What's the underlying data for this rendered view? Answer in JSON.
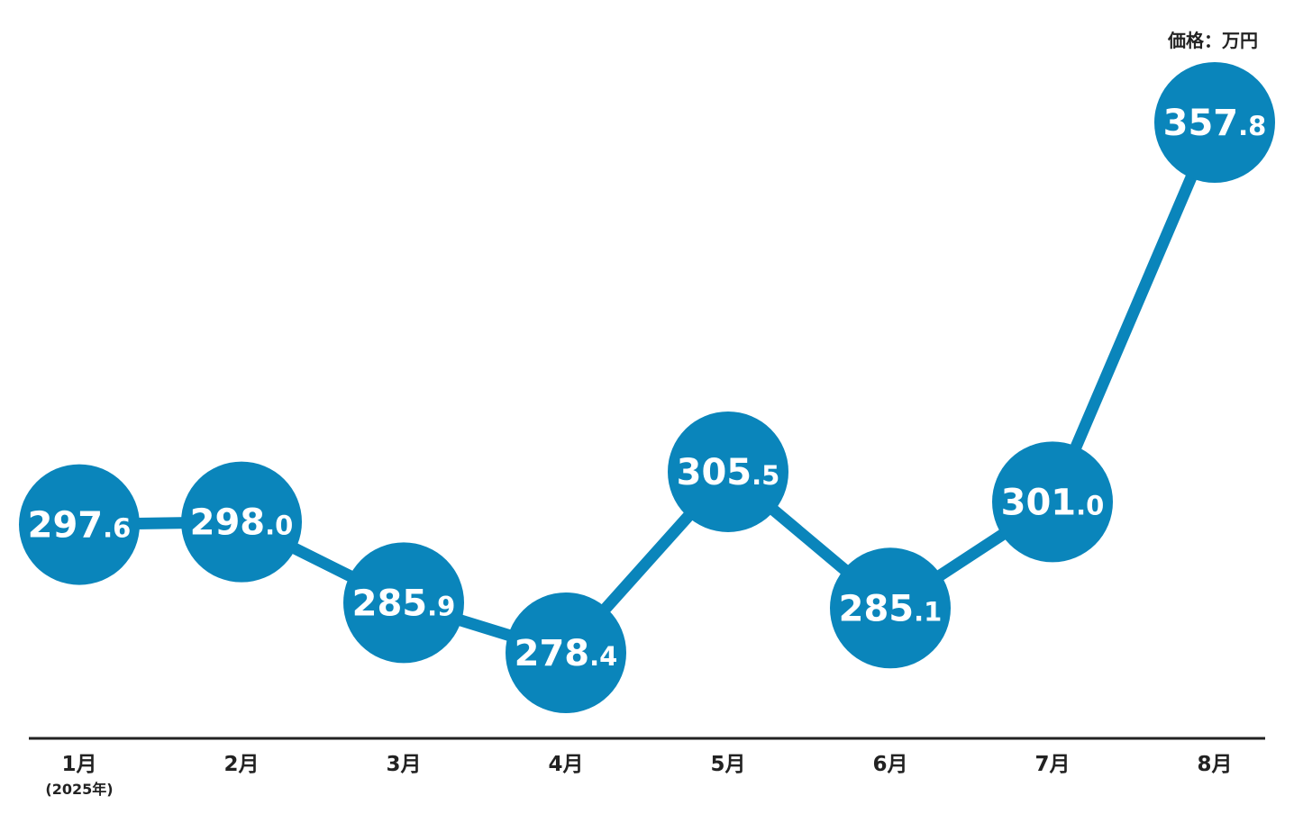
{
  "chart_data": {
    "type": "line",
    "unit_label": "価格：万円",
    "categories": [
      "1月",
      "2月",
      "3月",
      "4月",
      "5月",
      "6月",
      "7月",
      "8月"
    ],
    "category_note": "(2025年)",
    "values": [
      297.6,
      298.0,
      285.9,
      278.4,
      305.5,
      285.1,
      301.0,
      357.8
    ],
    "value_labels": [
      {
        "int": "297",
        "dec": ".6"
      },
      {
        "int": "298",
        "dec": ".0"
      },
      {
        "int": "285",
        "dec": ".9"
      },
      {
        "int": "278",
        "dec": ".4"
      },
      {
        "int": "305",
        "dec": ".5"
      },
      {
        "int": "285",
        "dec": ".1"
      },
      {
        "int": "301",
        "dec": ".0"
      },
      {
        "int": "357",
        "dec": ".8"
      }
    ],
    "grid": false,
    "legend": "none",
    "colors": {
      "series": "#0a85bb",
      "axis": "#222222",
      "label_text": "#ffffff"
    }
  }
}
